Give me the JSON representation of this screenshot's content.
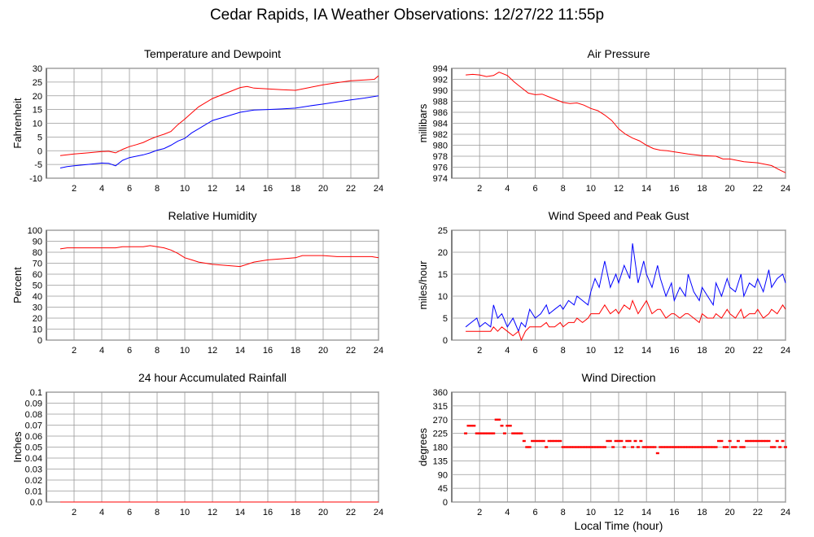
{
  "page": {
    "title": "Cedar Rapids, IA Weather Observations: 12/27/22 11:55p",
    "xlabel": "Local Time (hour)"
  },
  "chart_data": [
    {
      "id": "temp",
      "type": "line",
      "title": "Temperature and Dewpoint",
      "ylabel": "Fahrenheit",
      "xlim": [
        0,
        24
      ],
      "ylim": [
        -10,
        30
      ],
      "xticks": [
        2,
        4,
        6,
        8,
        10,
        12,
        14,
        16,
        18,
        20,
        22,
        24
      ],
      "yticks": [
        -10,
        -5,
        0,
        5,
        10,
        15,
        20,
        25,
        30
      ],
      "grid": true,
      "series": [
        {
          "color": "#ff0000",
          "x": [
            1.0,
            1.5,
            2.0,
            3.0,
            4.0,
            4.5,
            5.0,
            5.5,
            6.0,
            6.5,
            7.0,
            7.5,
            8.0,
            8.5,
            9.0,
            9.5,
            10.0,
            10.5,
            11.0,
            11.5,
            12.0,
            13.0,
            14.0,
            14.5,
            15.0,
            16.0,
            17.0,
            18.0,
            19.0,
            20.0,
            21.0,
            22.0,
            23.0,
            23.7,
            24.0
          ],
          "y": [
            -1.8,
            -1.5,
            -1.2,
            -0.8,
            -0.3,
            -0.2,
            -0.8,
            0.5,
            1.5,
            2.2,
            3.0,
            4.2,
            5.2,
            6.0,
            7.0,
            9.5,
            11.5,
            13.8,
            16.0,
            17.5,
            19.0,
            21.0,
            23.0,
            23.4,
            22.8,
            22.5,
            22.2,
            22.0,
            23.0,
            24.0,
            24.8,
            25.5,
            25.8,
            26.0,
            27.3
          ]
        },
        {
          "color": "#0000ff",
          "x": [
            1.0,
            1.5,
            2.0,
            3.0,
            4.0,
            4.5,
            5.0,
            5.5,
            6.0,
            6.5,
            7.0,
            7.5,
            8.0,
            8.5,
            9.0,
            9.5,
            10.0,
            10.5,
            11.0,
            11.5,
            12.0,
            13.0,
            14.0,
            15.0,
            16.0,
            17.0,
            18.0,
            19.0,
            20.0,
            21.0,
            22.0,
            23.0,
            24.0
          ],
          "y": [
            -6.3,
            -5.8,
            -5.5,
            -5.0,
            -4.5,
            -4.6,
            -5.5,
            -3.5,
            -2.5,
            -2.0,
            -1.5,
            -0.8,
            0.2,
            0.8,
            2.0,
            3.5,
            4.5,
            6.5,
            8.0,
            9.5,
            11.0,
            12.5,
            14.0,
            14.8,
            15.0,
            15.2,
            15.5,
            16.3,
            17.0,
            17.8,
            18.5,
            19.2,
            20.0
          ]
        }
      ]
    },
    {
      "id": "pressure",
      "type": "line",
      "title": "Air Pressure",
      "ylabel": "millibars",
      "xlim": [
        0,
        24
      ],
      "ylim": [
        974,
        994
      ],
      "xticks": [
        2,
        4,
        6,
        8,
        10,
        12,
        14,
        16,
        18,
        20,
        22,
        24
      ],
      "yticks": [
        974,
        976,
        978,
        980,
        982,
        984,
        986,
        988,
        990,
        992,
        994
      ],
      "grid": true,
      "series": [
        {
          "color": "#ff0000",
          "x": [
            1.0,
            1.5,
            2.0,
            2.5,
            3.0,
            3.4,
            4.0,
            4.5,
            5.0,
            5.5,
            6.0,
            6.5,
            7.0,
            7.5,
            8.0,
            8.5,
            9.0,
            9.5,
            10.0,
            10.5,
            11.0,
            11.5,
            12.0,
            12.5,
            13.0,
            13.5,
            14.0,
            14.5,
            15.0,
            15.5,
            16.0,
            17.0,
            18.0,
            19.0,
            19.5,
            20.0,
            21.0,
            22.0,
            23.0,
            23.5,
            24.0
          ],
          "y": [
            992.8,
            992.9,
            992.8,
            992.5,
            992.7,
            993.3,
            992.7,
            991.5,
            990.5,
            989.5,
            989.2,
            989.3,
            988.8,
            988.3,
            987.8,
            987.6,
            987.7,
            987.3,
            986.7,
            986.3,
            985.5,
            984.5,
            983.0,
            982.0,
            981.3,
            980.8,
            980.0,
            979.4,
            979.1,
            979.0,
            978.8,
            978.4,
            978.1,
            978.0,
            977.5,
            977.5,
            977.0,
            976.8,
            976.3,
            975.6,
            975.0
          ]
        }
      ]
    },
    {
      "id": "humidity",
      "type": "line",
      "title": "Relative Humidity",
      "ylabel": "Percent",
      "xlim": [
        0,
        24
      ],
      "ylim": [
        0,
        100
      ],
      "xticks": [
        2,
        4,
        6,
        8,
        10,
        12,
        14,
        16,
        18,
        20,
        22,
        24
      ],
      "yticks": [
        0,
        10,
        20,
        30,
        40,
        50,
        60,
        70,
        80,
        90,
        100
      ],
      "grid": true,
      "series": [
        {
          "color": "#ff0000",
          "x": [
            1.0,
            1.5,
            2.0,
            3.0,
            4.0,
            5.0,
            5.5,
            6.0,
            7.0,
            7.5,
            8.0,
            8.5,
            9.0,
            9.5,
            10.0,
            10.5,
            11.0,
            11.5,
            12.0,
            13.0,
            14.0,
            14.5,
            15.0,
            16.0,
            17.0,
            18.0,
            18.5,
            19.0,
            20.0,
            21.0,
            22.0,
            23.0,
            23.5,
            24.0
          ],
          "y": [
            83,
            84,
            84,
            84,
            84,
            84,
            85,
            85,
            85,
            86,
            85,
            84,
            82,
            79,
            75,
            73,
            71,
            70,
            69,
            68,
            67,
            69,
            71,
            73,
            74,
            75,
            77,
            77,
            77,
            76,
            76,
            76,
            76,
            75
          ]
        }
      ]
    },
    {
      "id": "wind",
      "type": "line",
      "title": "Wind Speed and Peak Gust",
      "ylabel": "miles/hour",
      "xlim": [
        0,
        24
      ],
      "ylim": [
        0,
        25
      ],
      "xticks": [
        2,
        4,
        6,
        8,
        10,
        12,
        14,
        16,
        18,
        20,
        22,
        24
      ],
      "yticks": [
        0,
        5,
        10,
        15,
        20,
        25
      ],
      "grid": true,
      "series": [
        {
          "color": "#0000ff",
          "x": [
            1.0,
            1.4,
            1.8,
            2.0,
            2.4,
            2.8,
            3.0,
            3.3,
            3.6,
            4.0,
            4.4,
            4.8,
            5.0,
            5.3,
            5.6,
            6.0,
            6.4,
            6.8,
            7.0,
            7.4,
            7.8,
            8.0,
            8.4,
            8.8,
            9.0,
            9.4,
            9.8,
            10.0,
            10.3,
            10.6,
            11.0,
            11.4,
            11.8,
            12.0,
            12.4,
            12.8,
            13.0,
            13.4,
            13.8,
            14.0,
            14.4,
            14.8,
            15.0,
            15.4,
            15.8,
            16.0,
            16.4,
            16.8,
            17.0,
            17.4,
            17.8,
            18.0,
            18.4,
            18.8,
            19.0,
            19.4,
            19.8,
            20.0,
            20.4,
            20.8,
            21.0,
            21.4,
            21.8,
            22.0,
            22.4,
            22.8,
            23.0,
            23.4,
            23.8,
            24.0
          ],
          "y": [
            3,
            4,
            5,
            3,
            4,
            3,
            8,
            5,
            6,
            3,
            5,
            2,
            4,
            3,
            7,
            5,
            6,
            8,
            6,
            7,
            8,
            7,
            9,
            8,
            10,
            9,
            8,
            11,
            14,
            12,
            18,
            12,
            15,
            13,
            17,
            14,
            22,
            13,
            18,
            15,
            12,
            17,
            14,
            10,
            13,
            9,
            12,
            10,
            15,
            11,
            9,
            12,
            10,
            8,
            13,
            10,
            14,
            12,
            11,
            15,
            10,
            13,
            12,
            14,
            11,
            16,
            12,
            14,
            15,
            13
          ]
        },
        {
          "color": "#ff0000",
          "x": [
            1.0,
            1.4,
            1.8,
            2.0,
            2.4,
            2.8,
            3.0,
            3.3,
            3.6,
            4.0,
            4.4,
            4.8,
            5.0,
            5.3,
            5.6,
            6.0,
            6.4,
            6.8,
            7.0,
            7.4,
            7.8,
            8.0,
            8.4,
            8.8,
            9.0,
            9.4,
            9.8,
            10.0,
            10.3,
            10.6,
            11.0,
            11.4,
            11.8,
            12.0,
            12.4,
            12.8,
            13.0,
            13.4,
            13.8,
            14.0,
            14.4,
            14.8,
            15.0,
            15.4,
            15.8,
            16.0,
            16.4,
            16.8,
            17.0,
            17.4,
            17.8,
            18.0,
            18.4,
            18.8,
            19.0,
            19.4,
            19.8,
            20.0,
            20.4,
            20.8,
            21.0,
            21.4,
            21.8,
            22.0,
            22.4,
            22.8,
            23.0,
            23.4,
            23.8,
            24.0
          ],
          "y": [
            2,
            2,
            2,
            2,
            2,
            2,
            3,
            2,
            3,
            2,
            1,
            2,
            0,
            2,
            3,
            3,
            3,
            4,
            3,
            3,
            4,
            3,
            4,
            4,
            5,
            4,
            5,
            6,
            6,
            6,
            8,
            6,
            7,
            6,
            8,
            7,
            9,
            6,
            8,
            9,
            6,
            7,
            7,
            5,
            6,
            6,
            5,
            6,
            6,
            5,
            4,
            6,
            5,
            5,
            6,
            5,
            7,
            6,
            5,
            7,
            5,
            6,
            6,
            7,
            5,
            6,
            7,
            6,
            8,
            7
          ]
        }
      ]
    },
    {
      "id": "rain",
      "type": "line",
      "title": "24 hour Accumulated Rainfall",
      "ylabel": "Inches",
      "xlim": [
        0,
        24
      ],
      "ylim": [
        0,
        0.1
      ],
      "xticks": [
        2,
        4,
        6,
        8,
        10,
        12,
        14,
        16,
        18,
        20,
        22,
        24
      ],
      "yticks": [
        "0.0",
        "0.01",
        "0.02",
        "0.03",
        "0.04",
        "0.05",
        "0.06",
        "0.07",
        "0.08",
        "0.09",
        "0.1"
      ],
      "grid": true,
      "series": [
        {
          "color": "#ff0000",
          "x": [
            1.0,
            24.0
          ],
          "y": [
            0,
            0
          ]
        }
      ]
    },
    {
      "id": "direction",
      "type": "scatter",
      "title": "Wind Direction",
      "ylabel": "degrees",
      "xlabel": "Local Time (hour)",
      "xlim": [
        0,
        24
      ],
      "ylim": [
        0,
        360
      ],
      "xticks": [
        2,
        4,
        6,
        8,
        10,
        12,
        14,
        16,
        18,
        20,
        22,
        24
      ],
      "yticks": [
        0,
        45,
        90,
        135,
        180,
        225,
        270,
        315,
        360
      ],
      "grid": true,
      "series": [
        {
          "color": "#ff0000",
          "x": [
            1.0,
            1.2,
            1.4,
            1.6,
            1.8,
            2.0,
            2.2,
            2.4,
            2.6,
            2.8,
            3.0,
            3.2,
            3.4,
            3.6,
            3.8,
            4.0,
            4.2,
            4.4,
            4.6,
            4.8,
            5.0,
            5.2,
            5.4,
            5.6,
            5.8,
            6.0,
            6.2,
            6.4,
            6.6,
            6.8,
            7.0,
            7.2,
            7.4,
            7.6,
            7.8,
            8.0,
            8.2,
            8.4,
            8.6,
            8.8,
            9.0,
            9.2,
            9.4,
            9.6,
            9.8,
            10.0,
            10.2,
            10.4,
            10.6,
            10.8,
            11.0,
            11.2,
            11.4,
            11.6,
            11.8,
            12.0,
            12.2,
            12.4,
            12.6,
            12.8,
            13.0,
            13.2,
            13.4,
            13.6,
            13.8,
            14.0,
            14.2,
            14.4,
            14.6,
            14.8,
            15.0,
            15.2,
            15.4,
            15.6,
            15.8,
            16.0,
            16.2,
            16.4,
            16.6,
            16.8,
            17.0,
            17.2,
            17.4,
            17.6,
            17.8,
            18.0,
            18.2,
            18.4,
            18.6,
            18.8,
            19.0,
            19.2,
            19.4,
            19.6,
            19.8,
            20.0,
            20.2,
            20.4,
            20.6,
            20.8,
            21.0,
            21.2,
            21.4,
            21.6,
            21.8,
            22.0,
            22.2,
            22.4,
            22.6,
            22.8,
            23.0,
            23.2,
            23.4,
            23.6,
            23.8,
            24.0
          ],
          "y": [
            225,
            250,
            250,
            250,
            225,
            225,
            225,
            225,
            225,
            225,
            225,
            270,
            270,
            250,
            225,
            250,
            250,
            225,
            225,
            225,
            225,
            200,
            180,
            180,
            200,
            200,
            200,
            200,
            200,
            180,
            200,
            200,
            200,
            200,
            200,
            180,
            180,
            180,
            180,
            180,
            180,
            180,
            180,
            180,
            180,
            180,
            180,
            180,
            180,
            180,
            180,
            200,
            200,
            180,
            200,
            200,
            200,
            180,
            200,
            200,
            180,
            200,
            180,
            200,
            180,
            180,
            180,
            180,
            180,
            160,
            180,
            180,
            180,
            180,
            180,
            180,
            180,
            180,
            180,
            180,
            180,
            180,
            180,
            180,
            180,
            180,
            180,
            180,
            180,
            180,
            180,
            200,
            200,
            180,
            180,
            200,
            180,
            180,
            200,
            180,
            180,
            200,
            200,
            200,
            200,
            200,
            200,
            200,
            200,
            200,
            180,
            180,
            200,
            180,
            200,
            180
          ]
        }
      ]
    }
  ]
}
